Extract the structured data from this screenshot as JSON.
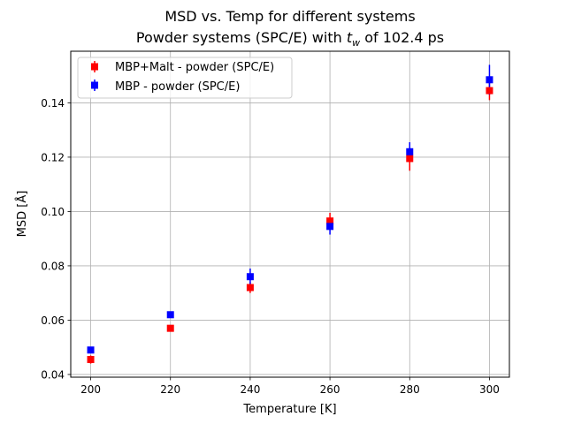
{
  "chart_data": {
    "type": "scatter",
    "title_line1": "MSD vs. Temp for different systems",
    "title_line2_prefix": "Powder systems (SPC/E) with ",
    "title_line2_var": "t",
    "title_line2_sub": "w",
    "title_line2_suffix": " of 102.4 ps",
    "xlabel": "Temperature [K]",
    "ylabel": "MSD [Å]",
    "xlim": [
      195,
      305
    ],
    "ylim": [
      0.039,
      0.159
    ],
    "xticks": [
      200,
      220,
      240,
      260,
      280,
      300
    ],
    "yticks": [
      0.04,
      0.06,
      0.08,
      0.1,
      0.12,
      0.14
    ],
    "xtick_labels": [
      "200",
      "220",
      "240",
      "260",
      "280",
      "300"
    ],
    "ytick_labels": [
      "0.04",
      "0.06",
      "0.08",
      "0.10",
      "0.12",
      "0.14"
    ],
    "grid": true,
    "legend_position": "top-left",
    "series": [
      {
        "name": "MBP+Malt - powder (SPC/E)",
        "color": "#ff0000",
        "marker": "square",
        "x": [
          200,
          220,
          240,
          260,
          280,
          300
        ],
        "y": [
          0.0455,
          0.057,
          0.072,
          0.0965,
          0.1195,
          0.1445
        ],
        "yerr": [
          0.0015,
          0.0012,
          0.002,
          0.003,
          0.0045,
          0.0035
        ]
      },
      {
        "name": "MBP - powder (SPC/E)",
        "color": "#0000ff",
        "marker": "square",
        "x": [
          200,
          220,
          240,
          260,
          280,
          300
        ],
        "y": [
          0.049,
          0.062,
          0.076,
          0.0945,
          0.122,
          0.1485
        ],
        "yerr": [
          0.0012,
          0.0012,
          0.003,
          0.003,
          0.0035,
          0.0055
        ]
      }
    ]
  }
}
